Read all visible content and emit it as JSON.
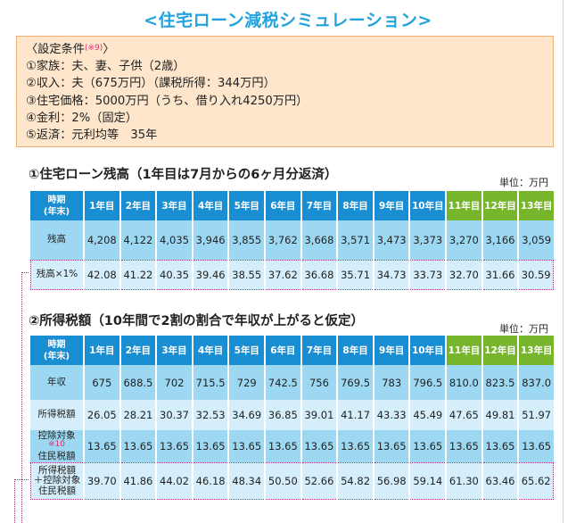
{
  "title": "<住宅ローン減税シミュレーション>",
  "conditions": {
    "heading": "〈設定条件",
    "note_mark": "(※9)",
    "heading_end": "〉",
    "lines": [
      "①家族：夫、妻、子供（2歳）",
      "②収入：夫（675万円）（課税所得：344万円）",
      "③住宅価格：5000万円（うち、借り入れ4250万円）",
      "④金利：2%（固定）",
      "⑤返済：元利均等　35年"
    ]
  },
  "table1": {
    "title": "①住宅ローン残高（1年目は7月からの6ヶ月分返済）",
    "unit": "単位：万円",
    "header_label": [
      "時期",
      "(年末)"
    ],
    "years": [
      "1年目",
      "2年目",
      "3年目",
      "4年目",
      "5年目",
      "6年目",
      "7年目",
      "8年目",
      "9年目",
      "10年目",
      "11年目",
      "12年目",
      "13年目"
    ],
    "rows": [
      {
        "label": "残高",
        "values": [
          "4,208",
          "4,122",
          "4,035",
          "3,946",
          "3,855",
          "3,762",
          "3,668",
          "3,571",
          "3,473",
          "3,373",
          "3,270",
          "3,166",
          "3,059"
        ]
      },
      {
        "label": "残高×1%",
        "values": [
          "42.08",
          "41.22",
          "40.35",
          "39.46",
          "38.55",
          "37.62",
          "36.68",
          "35.71",
          "34.73",
          "33.73",
          "32.70",
          "31.66",
          "30.59"
        ]
      }
    ]
  },
  "table2": {
    "title": "②所得税額（10年間で2割の割合で年収が上がると仮定）",
    "unit": "単位：万円",
    "header_label": [
      "時期",
      "(年末)"
    ],
    "years": [
      "1年目",
      "2年目",
      "3年目",
      "4年目",
      "5年目",
      "6年目",
      "7年目",
      "8年目",
      "9年目",
      "10年目",
      "11年目",
      "12年目",
      "13年目"
    ],
    "rows": [
      {
        "label": "年収",
        "values": [
          "675",
          "688.5",
          "702",
          "715.5",
          "729",
          "742.5",
          "756",
          "769.5",
          "783",
          "796.5",
          "810.0",
          "823.5",
          "837.0"
        ]
      },
      {
        "label": "所得税額",
        "values": [
          "26.05",
          "28.21",
          "30.37",
          "32.53",
          "34.69",
          "36.85",
          "39.01",
          "41.17",
          "43.33",
          "45.49",
          "47.65",
          "49.81",
          "51.97"
        ]
      },
      {
        "label": "控除対象住民税額",
        "label_lines": [
          "控除対象",
          "住民税額"
        ],
        "note": "※10",
        "values": [
          "13.65",
          "13.65",
          "13.65",
          "13.65",
          "13.65",
          "13.65",
          "13.65",
          "13.65",
          "13.65",
          "13.65",
          "13.65",
          "13.65",
          "13.65"
        ]
      },
      {
        "label": "所得税額＋控除対象住民税額",
        "label_lines": [
          "所得税額",
          "＋控除対象",
          "住民税額"
        ],
        "values": [
          "39.70",
          "41.86",
          "44.02",
          "46.18",
          "48.34",
          "50.50",
          "52.66",
          "54.82",
          "56.98",
          "59.14",
          "61.30",
          "63.46",
          "65.62"
        ]
      }
    ]
  }
}
